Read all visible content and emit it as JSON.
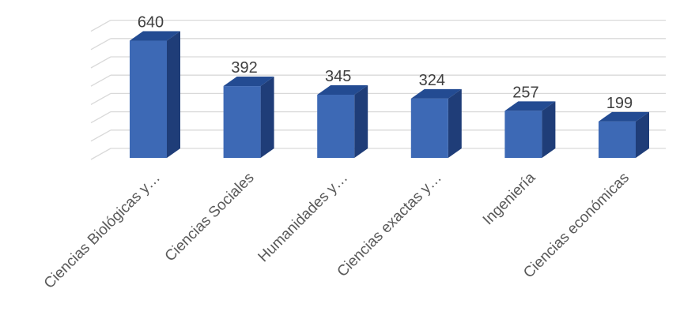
{
  "chart_data": {
    "type": "bar",
    "categories": [
      "Ciencias Biológicas y…",
      "Ciencias Sociales",
      "Humanidades y…",
      "Ciencias exactas y…",
      "Ingeniería",
      "Ciencias económicas"
    ],
    "values": [
      640,
      392,
      345,
      324,
      257,
      199
    ],
    "title": "",
    "xlabel": "",
    "ylabel": "",
    "ylim": [
      0,
      700
    ],
    "grid": true,
    "legend": "none",
    "three_d": true,
    "colors": {
      "bar_front": "#3d69b5",
      "bar_side": "#1f3d78",
      "bar_top": "#234b92",
      "grid": "#d9d9d9"
    }
  }
}
